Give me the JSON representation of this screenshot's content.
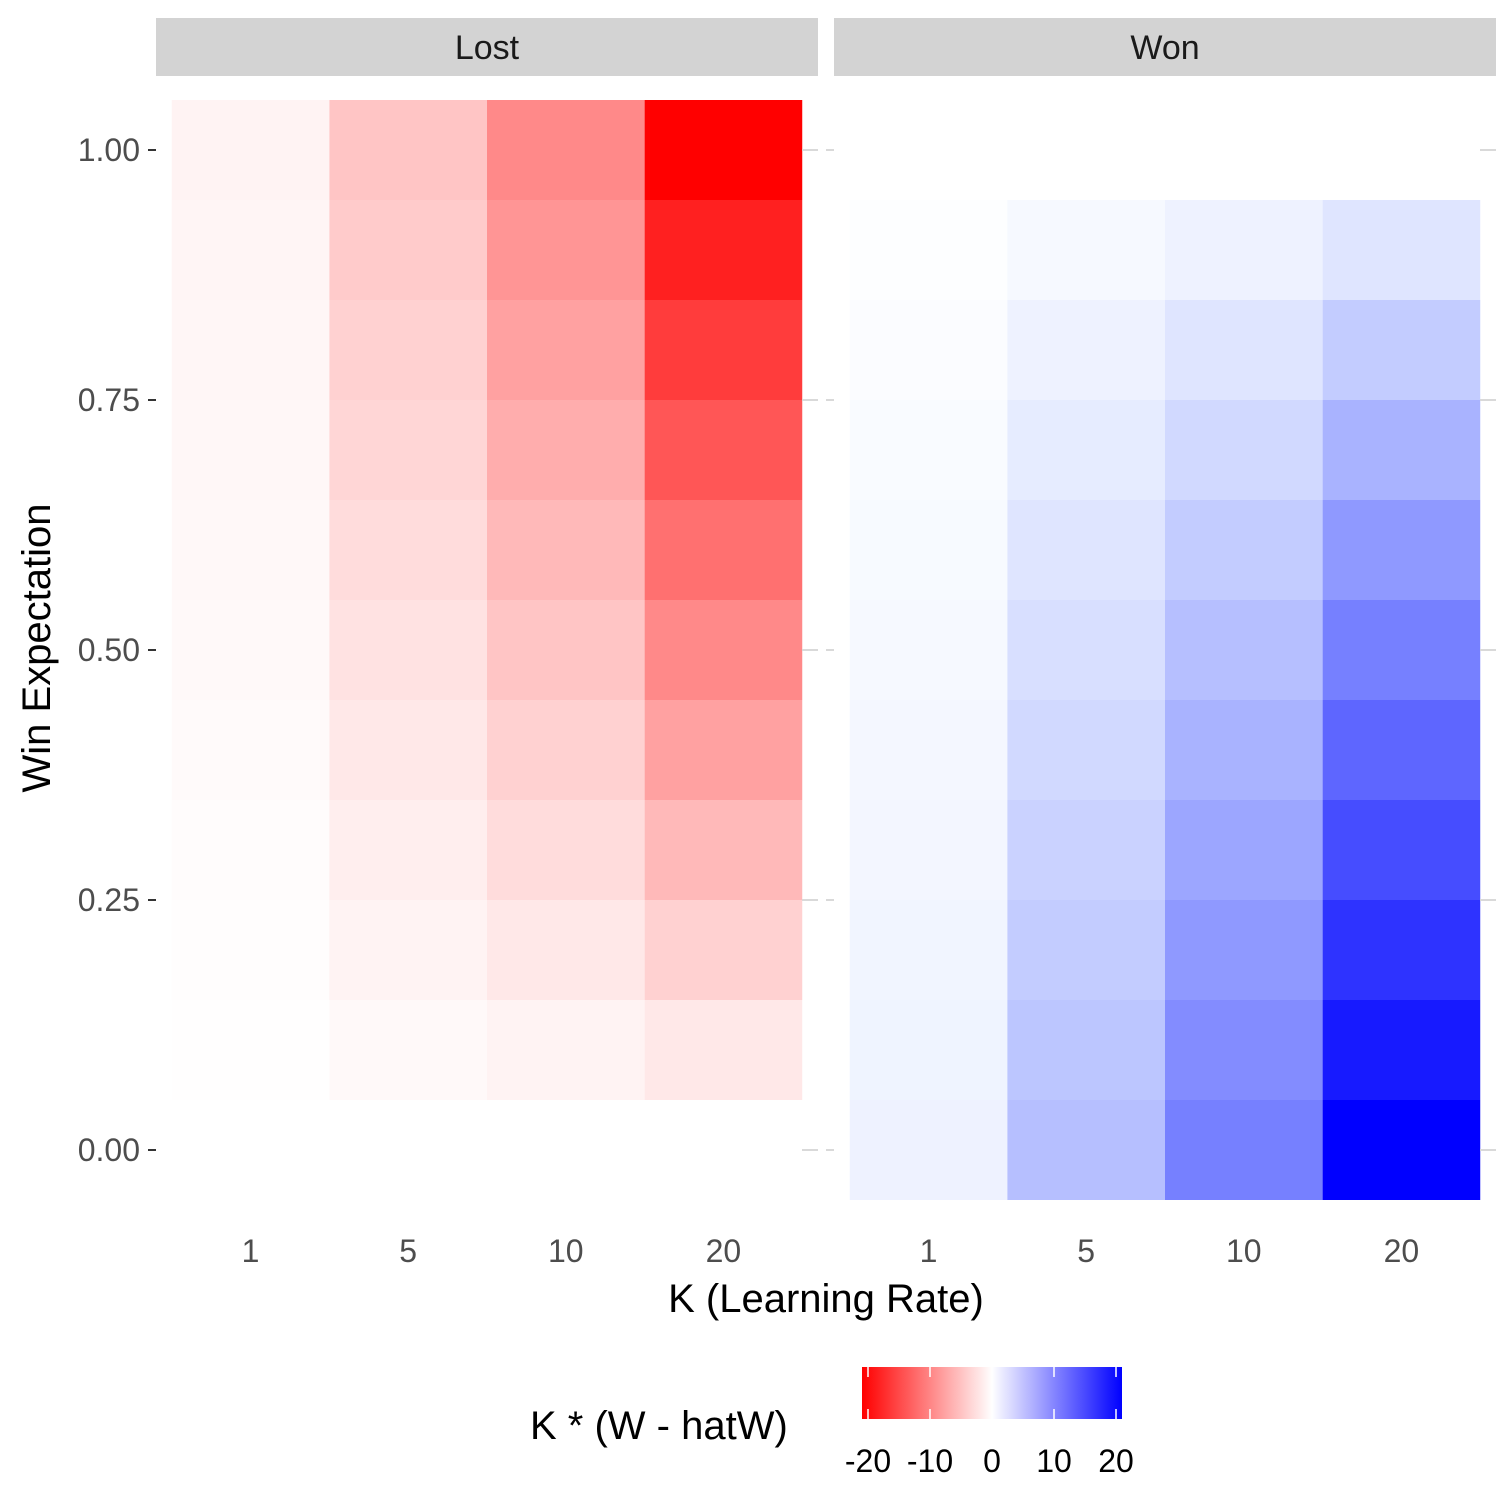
{
  "chart_data": {
    "type": "heatmap",
    "x_categories": [
      "1",
      "5",
      "10",
      "20"
    ],
    "x_values": [
      1,
      5,
      10,
      20
    ],
    "y_values": [
      0.0,
      0.1,
      0.2,
      0.3,
      0.4,
      0.5,
      0.6,
      0.7,
      0.8,
      0.9,
      1.0
    ],
    "y_ticks": [
      "0.00",
      "0.25",
      "0.50",
      "0.75",
      "1.00"
    ],
    "y_tick_values": [
      0,
      0.25,
      0.5,
      0.75,
      1.0
    ],
    "ylim": [
      -0.05,
      1.05
    ],
    "xlabel": "K (Learning Rate)",
    "ylabel": "Win Expectation",
    "facets": [
      {
        "label": "Lost",
        "W": 0,
        "hatW": [
          0.1,
          0.2,
          0.3,
          0.4,
          0.5,
          0.6,
          0.7,
          0.8,
          0.9,
          1.0
        ]
      },
      {
        "label": "Won",
        "W": 1,
        "hatW": [
          0.0,
          0.1,
          0.2,
          0.3,
          0.4,
          0.5,
          0.6,
          0.7,
          0.8,
          0.9
        ]
      }
    ],
    "value_formula": "K * (W - hatW)",
    "legend": {
      "title": "K * (W - hatW)",
      "limits": [
        -20,
        20
      ],
      "ticks": [
        "-20",
        "-10",
        "0",
        "10",
        "20"
      ],
      "tick_values": [
        -20,
        -10,
        0,
        10,
        20
      ],
      "colors": {
        "low": "#ff0000",
        "mid": "#ffffff",
        "high": "#0000ff"
      },
      "placement": "bottom"
    },
    "grid": false
  }
}
